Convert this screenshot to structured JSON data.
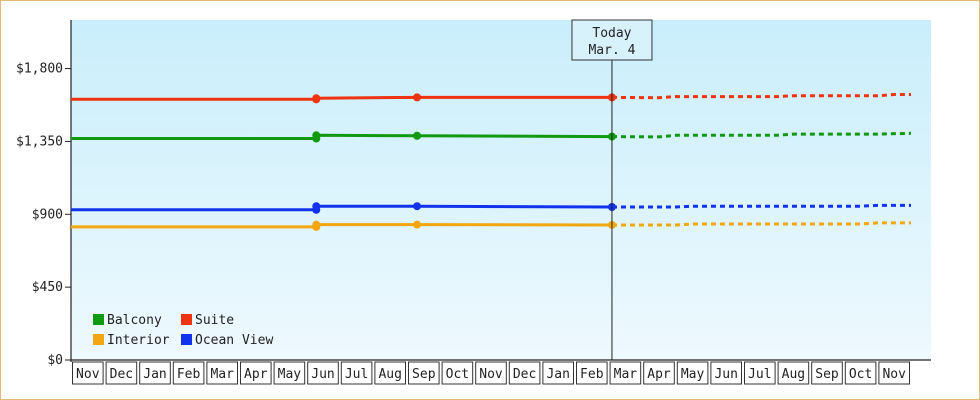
{
  "chart_data": {
    "type": "line",
    "ylim": [
      0,
      2100
    ],
    "yticks": [
      0,
      450,
      900,
      1350,
      1800
    ],
    "ytick_labels": [
      "$0",
      "$450",
      "$900",
      "$1,350",
      "$1,800"
    ],
    "month_labels": [
      "Nov",
      "Dec",
      "Jan",
      "Feb",
      "Mar",
      "Apr",
      "May",
      "Jun",
      "Jul",
      "Aug",
      "Sep",
      "Oct",
      "Nov",
      "Dec",
      "Jan",
      "Feb",
      "Mar",
      "Apr",
      "May",
      "Jun",
      "Jul",
      "Aug",
      "Sep",
      "Oct",
      "Nov"
    ],
    "today": {
      "label": "Today",
      "date": "Mar. 4",
      "month_pos": 16.1
    },
    "legend": {
      "position": "bottom-left"
    },
    "series": [
      {
        "name": "Balcony",
        "color": "#119911",
        "actual": [
          [
            0,
            1368
          ],
          [
            7.3,
            1368
          ],
          [
            7.3,
            1388
          ],
          [
            10.3,
            1385
          ],
          [
            16.1,
            1380
          ]
        ],
        "forecast": [
          [
            16.1,
            1380
          ],
          [
            17.5,
            1378
          ],
          [
            18,
            1388
          ],
          [
            21,
            1388
          ],
          [
            21.5,
            1395
          ],
          [
            24,
            1395
          ],
          [
            25,
            1400
          ]
        ],
        "markers": [
          [
            7.3,
            1368
          ],
          [
            7.3,
            1388
          ],
          [
            10.3,
            1385
          ],
          [
            16.1,
            1380
          ]
        ]
      },
      {
        "name": "Suite",
        "color": "#ee3311",
        "actual": [
          [
            0,
            1610
          ],
          [
            7.3,
            1610
          ],
          [
            7.3,
            1617
          ],
          [
            10.3,
            1622
          ],
          [
            16.1,
            1622
          ]
        ],
        "forecast": [
          [
            16.1,
            1622
          ],
          [
            17.5,
            1620
          ],
          [
            18,
            1627
          ],
          [
            21,
            1627
          ],
          [
            21.5,
            1632
          ],
          [
            24,
            1632
          ],
          [
            24.5,
            1640
          ],
          [
            25,
            1640
          ]
        ],
        "markers": [
          [
            7.3,
            1610
          ],
          [
            7.3,
            1617
          ],
          [
            10.3,
            1622
          ],
          [
            16.1,
            1622
          ]
        ]
      },
      {
        "name": "Interior",
        "color": "#f2a60f",
        "actual": [
          [
            0,
            822
          ],
          [
            7.3,
            822
          ],
          [
            7.3,
            836
          ],
          [
            10.3,
            836
          ],
          [
            16.1,
            834
          ]
        ],
        "forecast": [
          [
            16.1,
            834
          ],
          [
            18,
            834
          ],
          [
            18.5,
            840
          ],
          [
            23.5,
            840
          ],
          [
            24,
            847
          ],
          [
            25,
            847
          ]
        ],
        "markers": [
          [
            7.3,
            822
          ],
          [
            7.3,
            836
          ],
          [
            10.3,
            836
          ],
          [
            16.1,
            834
          ]
        ]
      },
      {
        "name": "Ocean View",
        "color": "#1133ee",
        "actual": [
          [
            0,
            928
          ],
          [
            7.3,
            928
          ],
          [
            7.3,
            950
          ],
          [
            10.3,
            950
          ],
          [
            16.1,
            945
          ]
        ],
        "forecast": [
          [
            16.1,
            945
          ],
          [
            18,
            945
          ],
          [
            18.5,
            950
          ],
          [
            23.5,
            950
          ],
          [
            24,
            955
          ],
          [
            25,
            955
          ]
        ],
        "markers": [
          [
            7.3,
            928
          ],
          [
            7.3,
            950
          ],
          [
            10.3,
            950
          ],
          [
            16.1,
            945
          ]
        ]
      }
    ]
  }
}
